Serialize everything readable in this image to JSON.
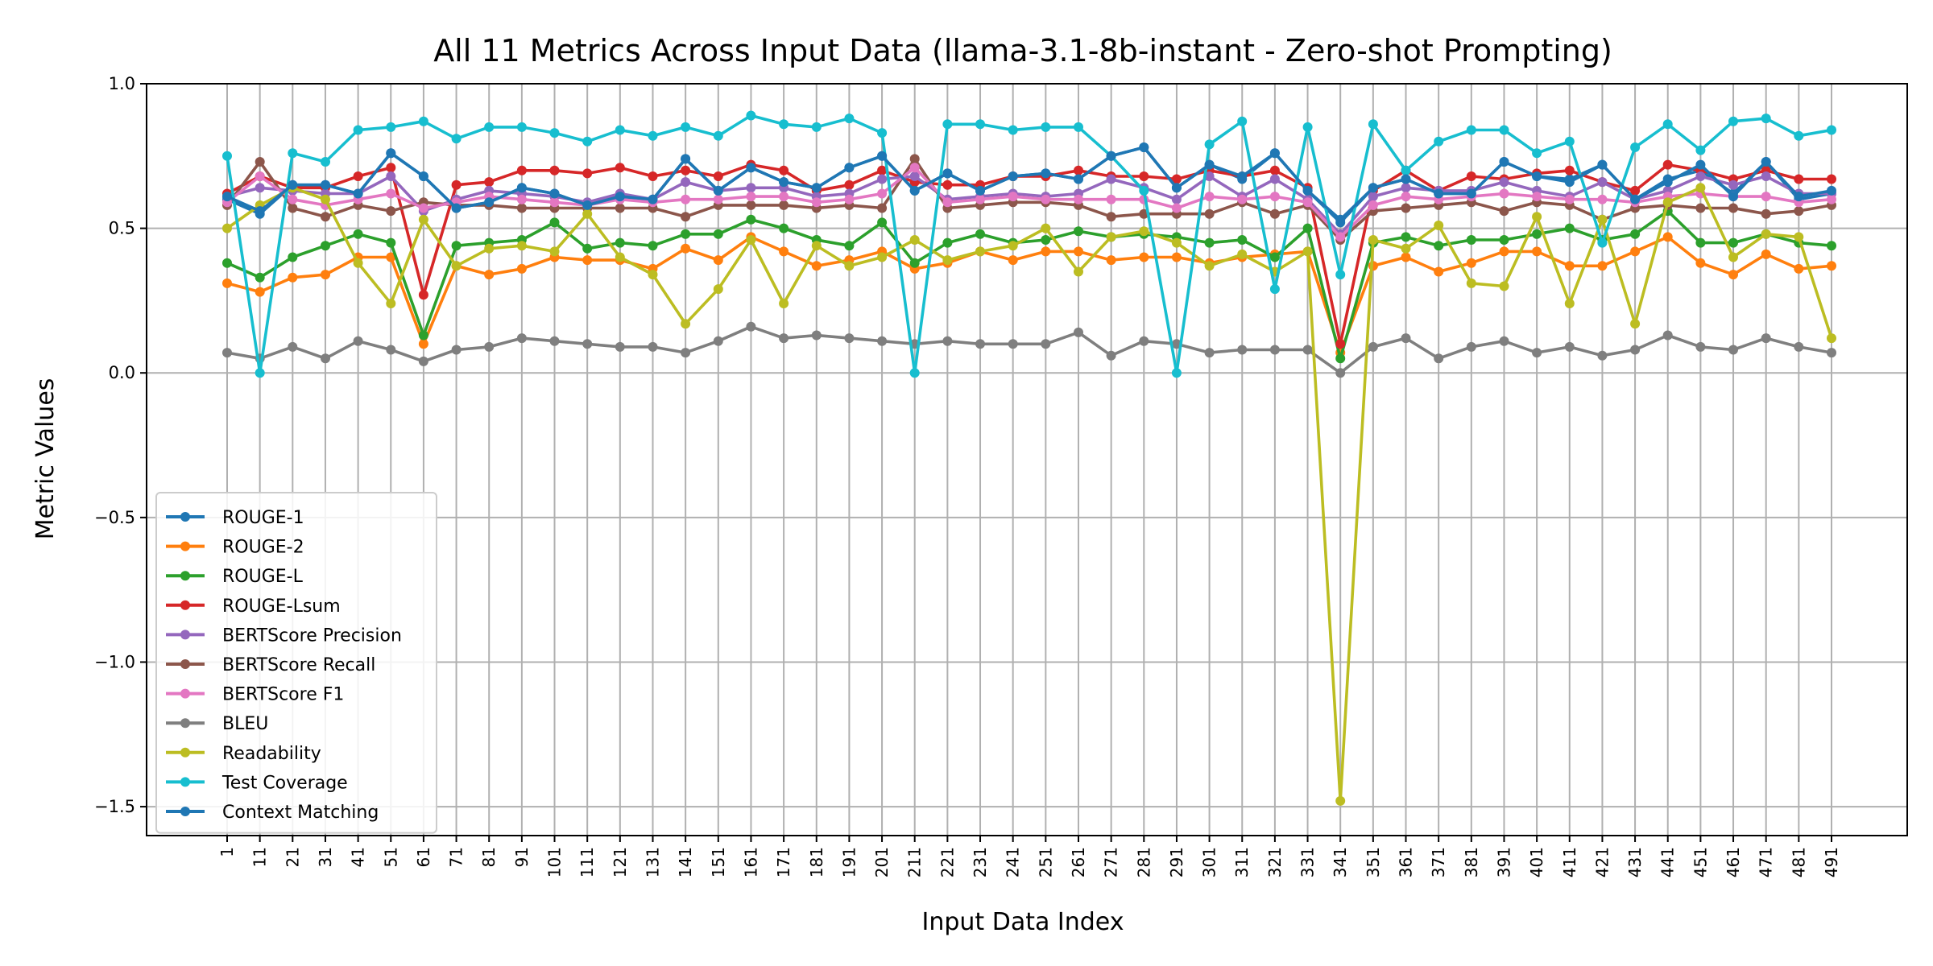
{
  "chart_data": {
    "type": "line",
    "title": "All 11 Metrics Across Input Data (llama-3.1-8b-instant - Zero-shot Prompting)",
    "xlabel": "Input Data Index",
    "ylabel": "Metric Values",
    "ylim": [
      -1.6,
      1.0
    ],
    "yticks": [
      1.0,
      0.5,
      0.0,
      -0.5,
      -1.0,
      -1.5
    ],
    "ytick_labels": [
      "1.0",
      "0.5",
      "0.0",
      "−0.5",
      "−1.0",
      "−1.5"
    ],
    "grid": true,
    "legend_position": "lower-left",
    "x": [
      1,
      11,
      21,
      31,
      41,
      51,
      61,
      71,
      81,
      91,
      101,
      111,
      121,
      131,
      141,
      151,
      161,
      171,
      181,
      191,
      201,
      211,
      221,
      231,
      241,
      251,
      261,
      271,
      281,
      291,
      301,
      311,
      321,
      331,
      341,
      351,
      361,
      371,
      381,
      391,
      401,
      411,
      421,
      431,
      441,
      451,
      461,
      471,
      481,
      491
    ],
    "series": [
      {
        "name": "ROUGE-1",
        "color": "#1f77b4",
        "values": [
          0.6,
          0.55,
          0.65,
          0.65,
          0.62,
          0.76,
          0.68,
          0.57,
          0.59,
          0.64,
          0.62,
          0.58,
          0.61,
          0.6,
          0.74,
          0.63,
          0.71,
          0.66,
          0.64,
          0.71,
          0.75,
          0.63,
          0.69,
          0.63,
          0.68,
          0.69,
          0.67,
          0.75,
          0.78,
          0.64,
          0.72,
          0.67,
          0.76,
          0.63,
          0.52,
          0.64,
          0.67,
          0.62,
          0.62,
          0.73,
          0.68,
          0.67,
          0.72,
          0.6,
          0.67,
          0.7,
          0.62,
          0.73,
          0.6,
          0.62
        ]
      },
      {
        "name": "ROUGE-2",
        "color": "#ff7f0e",
        "values": [
          0.31,
          0.28,
          0.33,
          0.34,
          0.4,
          0.4,
          0.1,
          0.37,
          0.34,
          0.36,
          0.4,
          0.39,
          0.39,
          0.36,
          0.43,
          0.39,
          0.47,
          0.42,
          0.37,
          0.39,
          0.42,
          0.36,
          0.38,
          0.42,
          0.39,
          0.42,
          0.42,
          0.39,
          0.4,
          0.4,
          0.38,
          0.4,
          0.41,
          0.42,
          0.07,
          0.37,
          0.4,
          0.35,
          0.38,
          0.42,
          0.42,
          0.37,
          0.37,
          0.42,
          0.47,
          0.38,
          0.34,
          0.41,
          0.36,
          0.37
        ]
      },
      {
        "name": "ROUGE-L",
        "color": "#2ca02c",
        "values": [
          0.38,
          0.33,
          0.4,
          0.44,
          0.48,
          0.45,
          0.13,
          0.44,
          0.45,
          0.46,
          0.52,
          0.43,
          0.45,
          0.44,
          0.48,
          0.48,
          0.53,
          0.5,
          0.46,
          0.44,
          0.52,
          0.38,
          0.45,
          0.48,
          0.45,
          0.46,
          0.49,
          0.47,
          0.48,
          0.47,
          0.45,
          0.46,
          0.4,
          0.5,
          0.05,
          0.45,
          0.47,
          0.44,
          0.46,
          0.46,
          0.48,
          0.5,
          0.46,
          0.48,
          0.56,
          0.45,
          0.45,
          0.48,
          0.45,
          0.44
        ]
      },
      {
        "name": "ROUGE-Lsum",
        "color": "#d62728",
        "values": [
          0.62,
          0.68,
          0.64,
          0.64,
          0.68,
          0.71,
          0.27,
          0.65,
          0.66,
          0.7,
          0.7,
          0.69,
          0.71,
          0.68,
          0.7,
          0.68,
          0.72,
          0.7,
          0.63,
          0.65,
          0.7,
          0.66,
          0.65,
          0.65,
          0.68,
          0.68,
          0.7,
          0.68,
          0.68,
          0.67,
          0.7,
          0.68,
          0.7,
          0.64,
          0.1,
          0.63,
          0.7,
          0.63,
          0.68,
          0.67,
          0.69,
          0.7,
          0.66,
          0.63,
          0.72,
          0.7,
          0.67,
          0.7,
          0.67,
          0.67
        ]
      },
      {
        "name": "BERTScore Precision",
        "color": "#9467bd",
        "values": [
          0.61,
          0.64,
          0.63,
          0.62,
          0.62,
          0.68,
          0.56,
          0.6,
          0.63,
          0.62,
          0.61,
          0.59,
          0.62,
          0.6,
          0.66,
          0.63,
          0.64,
          0.64,
          0.61,
          0.62,
          0.67,
          0.68,
          0.6,
          0.61,
          0.62,
          0.61,
          0.62,
          0.67,
          0.64,
          0.6,
          0.68,
          0.61,
          0.67,
          0.6,
          0.48,
          0.61,
          0.64,
          0.63,
          0.63,
          0.66,
          0.63,
          0.61,
          0.66,
          0.6,
          0.63,
          0.68,
          0.65,
          0.68,
          0.62,
          0.62
        ]
      },
      {
        "name": "BERTScore Recall",
        "color": "#8c564b",
        "values": [
          0.58,
          0.73,
          0.57,
          0.54,
          0.58,
          0.56,
          0.59,
          0.58,
          0.58,
          0.57,
          0.57,
          0.57,
          0.57,
          0.57,
          0.54,
          0.58,
          0.58,
          0.58,
          0.57,
          0.58,
          0.57,
          0.74,
          0.57,
          0.58,
          0.59,
          0.59,
          0.58,
          0.54,
          0.55,
          0.55,
          0.55,
          0.59,
          0.55,
          0.58,
          0.46,
          0.56,
          0.57,
          0.58,
          0.59,
          0.56,
          0.59,
          0.58,
          0.53,
          0.57,
          0.58,
          0.57,
          0.57,
          0.55,
          0.56,
          0.58
        ]
      },
      {
        "name": "BERTScore F1",
        "color": "#e377c2",
        "values": [
          0.59,
          0.68,
          0.6,
          0.58,
          0.6,
          0.62,
          0.57,
          0.59,
          0.61,
          0.6,
          0.59,
          0.58,
          0.6,
          0.59,
          0.6,
          0.6,
          0.61,
          0.61,
          0.59,
          0.6,
          0.62,
          0.71,
          0.59,
          0.6,
          0.61,
          0.6,
          0.6,
          0.6,
          0.6,
          0.57,
          0.61,
          0.6,
          0.61,
          0.59,
          0.47,
          0.58,
          0.61,
          0.6,
          0.61,
          0.62,
          0.61,
          0.6,
          0.6,
          0.59,
          0.61,
          0.62,
          0.61,
          0.61,
          0.59,
          0.6
        ]
      },
      {
        "name": "BLEU",
        "color": "#7f7f7f",
        "values": [
          0.07,
          0.05,
          0.09,
          0.05,
          0.11,
          0.08,
          0.04,
          0.08,
          0.09,
          0.12,
          0.11,
          0.1,
          0.09,
          0.09,
          0.07,
          0.11,
          0.16,
          0.12,
          0.13,
          0.12,
          0.11,
          0.1,
          0.11,
          0.1,
          0.1,
          0.1,
          0.14,
          0.06,
          0.11,
          0.1,
          0.07,
          0.08,
          0.08,
          0.08,
          0.0,
          0.09,
          0.12,
          0.05,
          0.09,
          0.11,
          0.07,
          0.09,
          0.06,
          0.08,
          0.13,
          0.09,
          0.08,
          0.12,
          0.09,
          0.07
        ]
      },
      {
        "name": "Readability",
        "color": "#bcbd22",
        "values": [
          0.5,
          0.58,
          0.64,
          0.6,
          0.38,
          0.24,
          0.53,
          0.37,
          0.43,
          0.44,
          0.42,
          0.55,
          0.4,
          0.34,
          0.17,
          0.29,
          0.46,
          0.24,
          0.44,
          0.37,
          0.4,
          0.46,
          0.39,
          0.42,
          0.44,
          0.5,
          0.35,
          0.47,
          0.49,
          0.45,
          0.37,
          0.41,
          0.35,
          0.42,
          -1.48,
          0.46,
          0.43,
          0.51,
          0.31,
          0.3,
          0.54,
          0.24,
          0.53,
          0.17,
          0.59,
          0.64,
          0.4,
          0.48,
          0.47,
          0.12
        ]
      },
      {
        "name": "Test Coverage",
        "color": "#17becf",
        "values": [
          0.75,
          0.0,
          0.76,
          0.73,
          0.84,
          0.85,
          0.87,
          0.81,
          0.85,
          0.85,
          0.83,
          0.8,
          0.84,
          0.82,
          0.85,
          0.82,
          0.89,
          0.86,
          0.85,
          0.88,
          0.83,
          0.0,
          0.86,
          0.86,
          0.84,
          0.85,
          0.85,
          0.75,
          0.63,
          0.0,
          0.79,
          0.87,
          0.29,
          0.85,
          0.34,
          0.86,
          0.7,
          0.8,
          0.84,
          0.84,
          0.76,
          0.8,
          0.45,
          0.78,
          0.86,
          0.77,
          0.87,
          0.88,
          0.82,
          0.84
        ]
      },
      {
        "name": "Context Matching",
        "color": "#1f77b4",
        "values": [
          0.61,
          0.56,
          0.65,
          0.65,
          0.62,
          0.76,
          0.68,
          0.57,
          0.59,
          0.64,
          0.62,
          0.58,
          0.61,
          0.6,
          0.74,
          0.63,
          0.71,
          0.66,
          0.64,
          0.71,
          0.75,
          0.63,
          0.69,
          0.63,
          0.68,
          0.69,
          0.67,
          0.75,
          0.78,
          0.64,
          0.72,
          0.68,
          0.76,
          0.63,
          0.53,
          0.64,
          0.67,
          0.62,
          0.62,
          0.73,
          0.68,
          0.66,
          0.72,
          0.6,
          0.66,
          0.72,
          0.61,
          0.73,
          0.61,
          0.63
        ]
      }
    ]
  }
}
